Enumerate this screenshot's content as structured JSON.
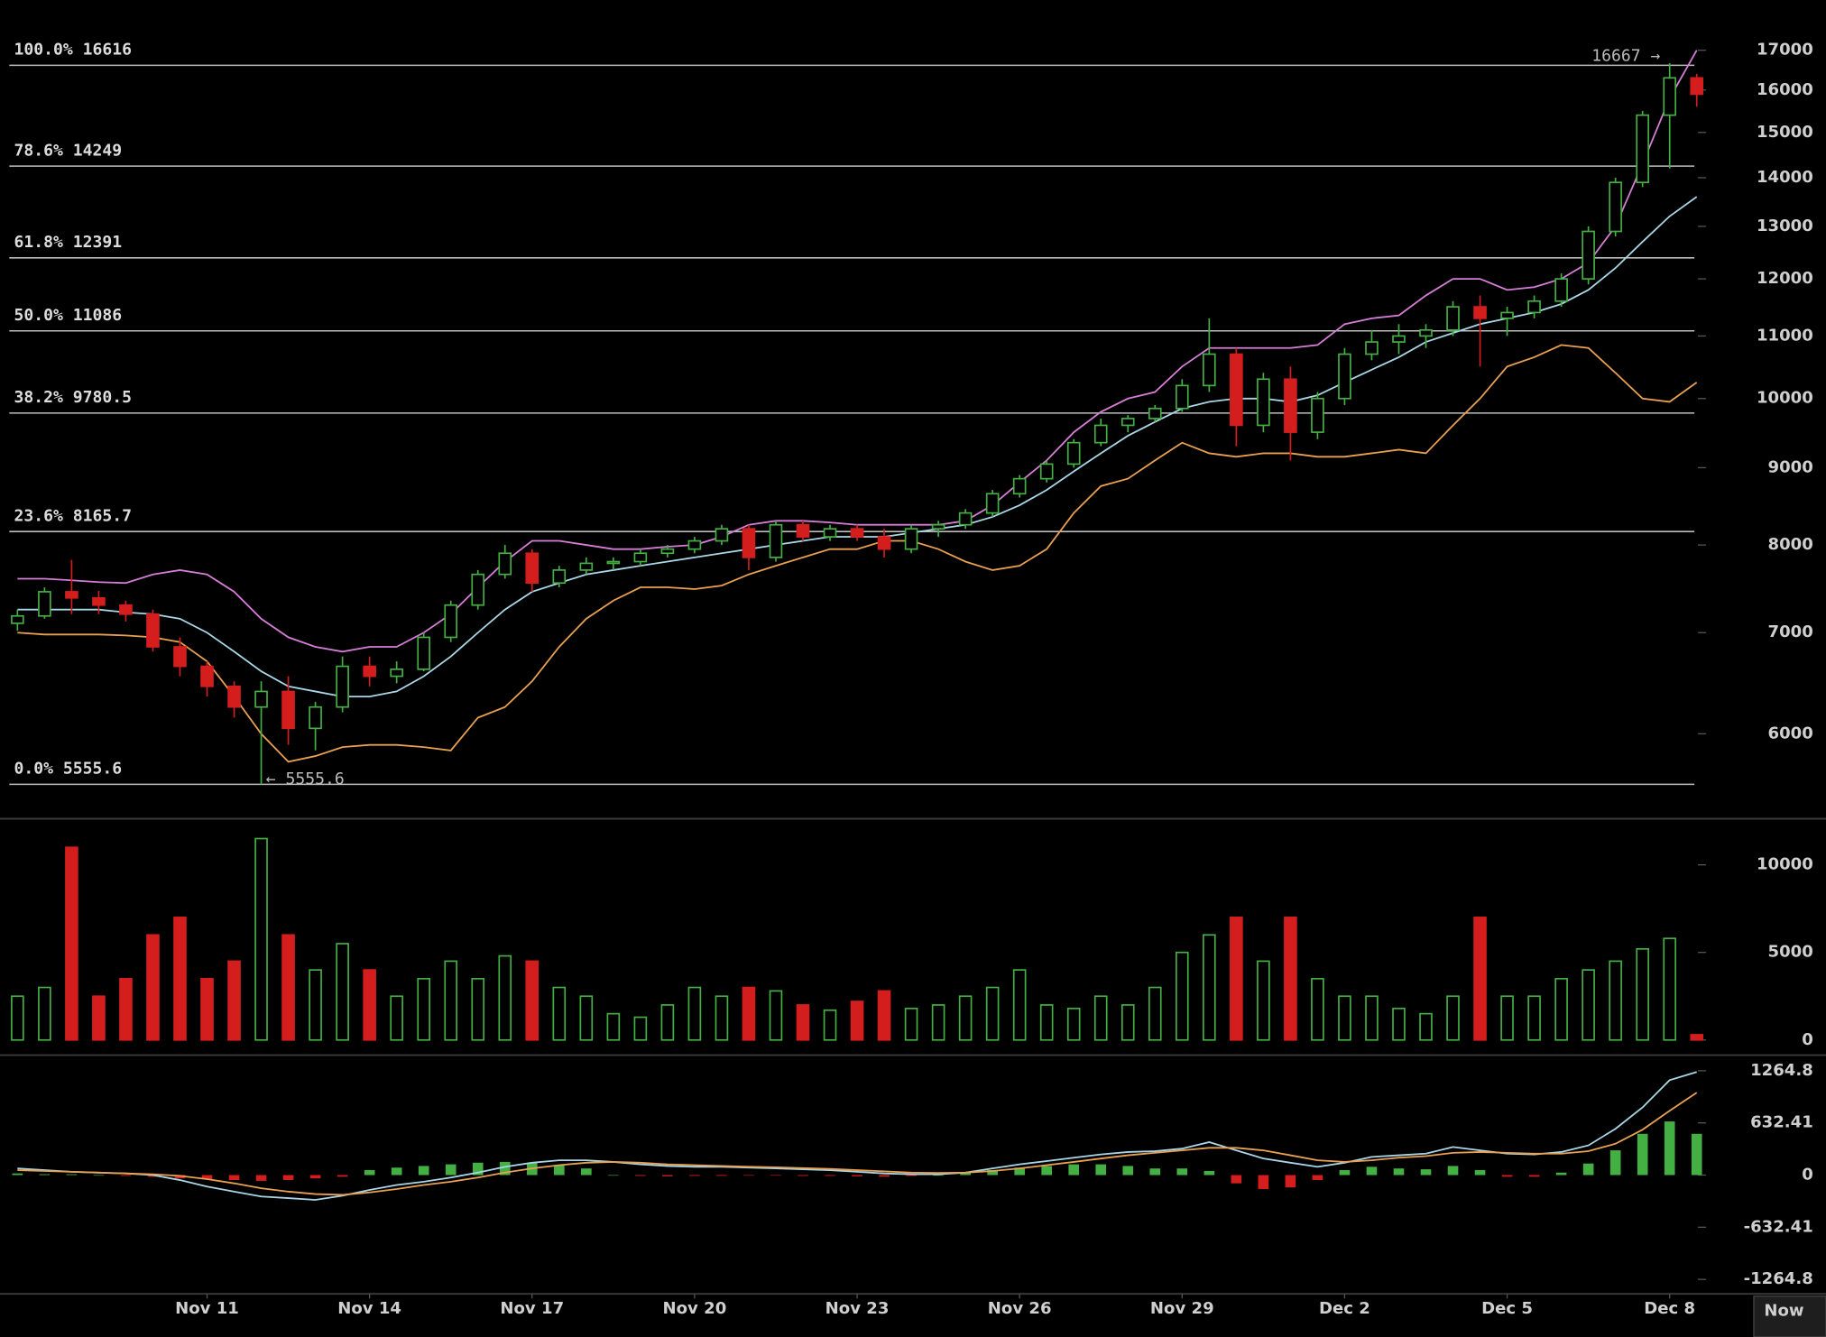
{
  "chart_data": [
    {
      "type": "candlestick",
      "categories": [
        null,
        null,
        null,
        null,
        null,
        null,
        null,
        "Nov 11",
        null,
        null,
        null,
        null,
        null,
        "Nov 14",
        null,
        null,
        null,
        null,
        null,
        "Nov 17",
        null,
        null,
        null,
        null,
        null,
        "Nov 20",
        null,
        null,
        null,
        null,
        null,
        "Nov 23",
        null,
        null,
        null,
        null,
        null,
        "Nov 26",
        null,
        null,
        null,
        null,
        null,
        "Nov 29",
        null,
        null,
        null,
        null,
        null,
        "Dec 2",
        null,
        null,
        null,
        null,
        null,
        "Dec 5",
        null,
        null,
        null,
        null,
        null,
        "Dec 8",
        null
      ],
      "candles": {
        "open": [
          7100,
          7180,
          7450,
          7380,
          7300,
          7200,
          6850,
          6650,
          6450,
          6250,
          6400,
          6050,
          6250,
          6650,
          6550,
          6620,
          6950,
          7300,
          7650,
          7900,
          7550,
          7700,
          7780,
          7800,
          7900,
          7950,
          8050,
          8200,
          7850,
          8250,
          8100,
          8200,
          8100,
          7950,
          8200,
          8250,
          8400,
          8650,
          8850,
          9050,
          9350,
          9600,
          9700,
          9850,
          10200,
          10700,
          9600,
          10300,
          9500,
          10000,
          10700,
          10900,
          11000,
          11100,
          11500,
          11300,
          11400,
          11600,
          12000,
          12900,
          13900,
          15400,
          16300
        ],
        "high": [
          7250,
          7500,
          7820,
          7460,
          7350,
          7250,
          6950,
          6700,
          6500,
          6500,
          6550,
          6300,
          6750,
          6750,
          6700,
          7000,
          7350,
          7700,
          8000,
          7950,
          7750,
          7850,
          7850,
          7950,
          8000,
          8100,
          8250,
          8250,
          8300,
          8300,
          8250,
          8250,
          8200,
          8250,
          8300,
          8450,
          8700,
          8900,
          9100,
          9400,
          9700,
          9750,
          9900,
          10300,
          11300,
          10800,
          10400,
          10500,
          10100,
          10800,
          11100,
          11200,
          11200,
          11600,
          11700,
          11500,
          11700,
          12100,
          13000,
          14000,
          15500,
          16667,
          16400
        ],
        "low": [
          7020,
          7150,
          7200,
          7200,
          7120,
          6800,
          6550,
          6350,
          6150,
          5555.6,
          5900,
          5850,
          6200,
          6450,
          6480,
          6600,
          6900,
          7250,
          7600,
          7450,
          7500,
          7650,
          7700,
          7750,
          7850,
          7900,
          8000,
          7700,
          7800,
          8050,
          8050,
          8050,
          7850,
          7900,
          8100,
          8200,
          8350,
          8600,
          8800,
          9000,
          9300,
          9500,
          9650,
          9800,
          10100,
          9300,
          9500,
          9100,
          9400,
          9900,
          10600,
          10700,
          10800,
          11000,
          10500,
          11000,
          11300,
          11500,
          11900,
          12800,
          13800,
          14200,
          15600
        ],
        "close": [
          7180,
          7450,
          7380,
          7300,
          7200,
          6850,
          6650,
          6450,
          6250,
          6400,
          6050,
          6250,
          6650,
          6550,
          6620,
          6950,
          7300,
          7650,
          7900,
          7550,
          7700,
          7780,
          7800,
          7900,
          7950,
          8050,
          8200,
          7850,
          8250,
          8100,
          8200,
          8100,
          7950,
          8200,
          8250,
          8400,
          8650,
          8850,
          9050,
          9350,
          9600,
          9700,
          9850,
          10200,
          10700,
          9600,
          10300,
          9500,
          10000,
          10700,
          10900,
          11000,
          11100,
          11500,
          11300,
          11400,
          11600,
          12000,
          12900,
          13900,
          15400,
          16300,
          15900
        ]
      },
      "up_color": "#44b044",
      "down_color": "#d41e1e",
      "bands": [
        {
          "color": "#d67ed6",
          "values": [
            7600,
            7600,
            7580,
            7560,
            7550,
            7650,
            7700,
            7650,
            7450,
            7150,
            6950,
            6850,
            6800,
            6850,
            6850,
            7000,
            7200,
            7500,
            7800,
            8050,
            8050,
            8000,
            7950,
            7950,
            7980,
            8000,
            8100,
            8250,
            8300,
            8300,
            8280,
            8250,
            8250,
            8250,
            8250,
            8300,
            8500,
            8800,
            9100,
            9500,
            9800,
            10000,
            10100,
            10500,
            10800,
            10800,
            10800,
            10800,
            10850,
            11200,
            11300,
            11350,
            11700,
            12000,
            12000,
            11800,
            11850,
            12000,
            12300,
            13000,
            14300,
            15800,
            17000
          ]
        },
        {
          "color": "#a9d6e6",
          "values": [
            7250,
            7250,
            7250,
            7250,
            7220,
            7200,
            7150,
            7000,
            6800,
            6600,
            6450,
            6400,
            6350,
            6350,
            6400,
            6550,
            6750,
            7000,
            7250,
            7450,
            7550,
            7650,
            7700,
            7750,
            7800,
            7850,
            7900,
            7950,
            8000,
            8050,
            8100,
            8100,
            8100,
            8150,
            8200,
            8250,
            8350,
            8500,
            8700,
            8950,
            9200,
            9450,
            9650,
            9850,
            9950,
            10000,
            10000,
            9950,
            10050,
            10250,
            10450,
            10650,
            10900,
            11050,
            11200,
            11300,
            11400,
            11550,
            11800,
            12200,
            12700,
            13200,
            13600
          ]
        },
        {
          "color": "#e8a052",
          "values": [
            7000,
            6980,
            6980,
            6980,
            6970,
            6950,
            6900,
            6700,
            6350,
            6000,
            5750,
            5800,
            5880,
            5900,
            5900,
            5880,
            5850,
            6150,
            6250,
            6500,
            6850,
            7150,
            7350,
            7500,
            7500,
            7480,
            7520,
            7650,
            7750,
            7850,
            7950,
            7950,
            8050,
            8050,
            7950,
            7800,
            7700,
            7750,
            7950,
            8400,
            8750,
            8850,
            9100,
            9350,
            9200,
            9150,
            9200,
            9200,
            9150,
            9150,
            9200,
            9250,
            9200,
            9600,
            10000,
            10500,
            10650,
            10850,
            10800,
            10400,
            10000,
            9950,
            10250
          ]
        }
      ],
      "levels": [
        {
          "label": "100.0%",
          "value": 16616
        },
        {
          "label": "78.6%",
          "value": 14249
        },
        {
          "label": "61.8%",
          "value": 12391
        },
        {
          "label": "50.0%",
          "value": 11086
        },
        {
          "label": "38.2%",
          "value": 9780.5
        },
        {
          "label": "23.6%",
          "value": 8165.7
        },
        {
          "label": "0.0%",
          "value": 5555.6
        }
      ],
      "annotations": [
        {
          "label": "16667 →",
          "value": 16667,
          "index": 61
        },
        {
          "label": "← 5555.6",
          "value": 5555.6,
          "index": 9
        }
      ],
      "log_scale": true,
      "ylim": [
        5300,
        17400
      ],
      "yticks": [
        6000,
        7000,
        8000,
        9000,
        10000,
        11000,
        12000,
        13000,
        14000,
        15000,
        16000,
        17000
      ]
    },
    {
      "type": "volume",
      "values": [
        2500,
        3000,
        11000,
        2500,
        3500,
        6000,
        7000,
        3500,
        4500,
        11500,
        6000,
        4000,
        5500,
        4000,
        2500,
        3500,
        4500,
        3500,
        4800,
        4500,
        3000,
        2500,
        1500,
        1300,
        2000,
        3000,
        2500,
        3000,
        2800,
        2000,
        1700,
        2200,
        2800,
        1800,
        2000,
        2500,
        3000,
        4000,
        2000,
        1800,
        2500,
        2000,
        3000,
        5000,
        6000,
        7000,
        4500,
        7000,
        3500,
        2500,
        2500,
        1800,
        1500,
        2500,
        7000,
        2500,
        2500,
        3500,
        4000,
        4500,
        5200,
        5800,
        300
      ],
      "ylim": [
        0,
        12500
      ],
      "yticks": [
        0,
        5000,
        10000
      ]
    },
    {
      "type": "macd",
      "series": [
        {
          "color": "#a9d6e6",
          "values": [
            80,
            60,
            40,
            30,
            20,
            0,
            -60,
            -140,
            -200,
            -260,
            -280,
            -300,
            -250,
            -180,
            -120,
            -80,
            -30,
            30,
            100,
            150,
            180,
            180,
            160,
            130,
            110,
            100,
            100,
            90,
            80,
            70,
            60,
            40,
            20,
            10,
            10,
            30,
            80,
            130,
            170,
            210,
            250,
            280,
            290,
            320,
            400,
            300,
            200,
            150,
            100,
            150,
            220,
            240,
            260,
            340,
            300,
            260,
            250,
            280,
            360,
            560,
            820,
            1150,
            1250
          ]
        },
        {
          "color": "#e8a052",
          "values": [
            60,
            50,
            40,
            30,
            20,
            10,
            -10,
            -50,
            -100,
            -160,
            -200,
            -230,
            -240,
            -210,
            -170,
            -120,
            -80,
            -30,
            30,
            80,
            120,
            150,
            160,
            150,
            130,
            120,
            110,
            100,
            95,
            85,
            75,
            60,
            45,
            30,
            25,
            30,
            50,
            80,
            120,
            160,
            200,
            240,
            270,
            300,
            330,
            330,
            300,
            240,
            180,
            160,
            180,
            210,
            230,
            270,
            280,
            270,
            260,
            260,
            290,
            380,
            550,
            780,
            1000
          ]
        }
      ],
      "histogram": {
        "up_color": "#44b044",
        "down_color": "#d41e1e",
        "values": [
          20,
          10,
          10,
          0,
          -10,
          -20,
          -40,
          -50,
          -60,
          -70,
          -60,
          -40,
          -20,
          60,
          90,
          110,
          130,
          150,
          160,
          150,
          120,
          80,
          0,
          -10,
          -15,
          -10,
          -10,
          -5,
          -5,
          -10,
          -10,
          -15,
          -20,
          -10,
          0,
          30,
          60,
          90,
          110,
          130,
          130,
          110,
          80,
          80,
          50,
          -100,
          -170,
          -150,
          -60,
          60,
          100,
          80,
          70,
          110,
          60,
          -20,
          -20,
          30,
          140,
          300,
          500,
          650,
          500
        ]
      },
      "ylim": [
        -1440,
        1440
      ],
      "yticks": [
        -1264.8,
        -632.41,
        0,
        632.41,
        1264.8
      ]
    }
  ],
  "now_label": "Now"
}
